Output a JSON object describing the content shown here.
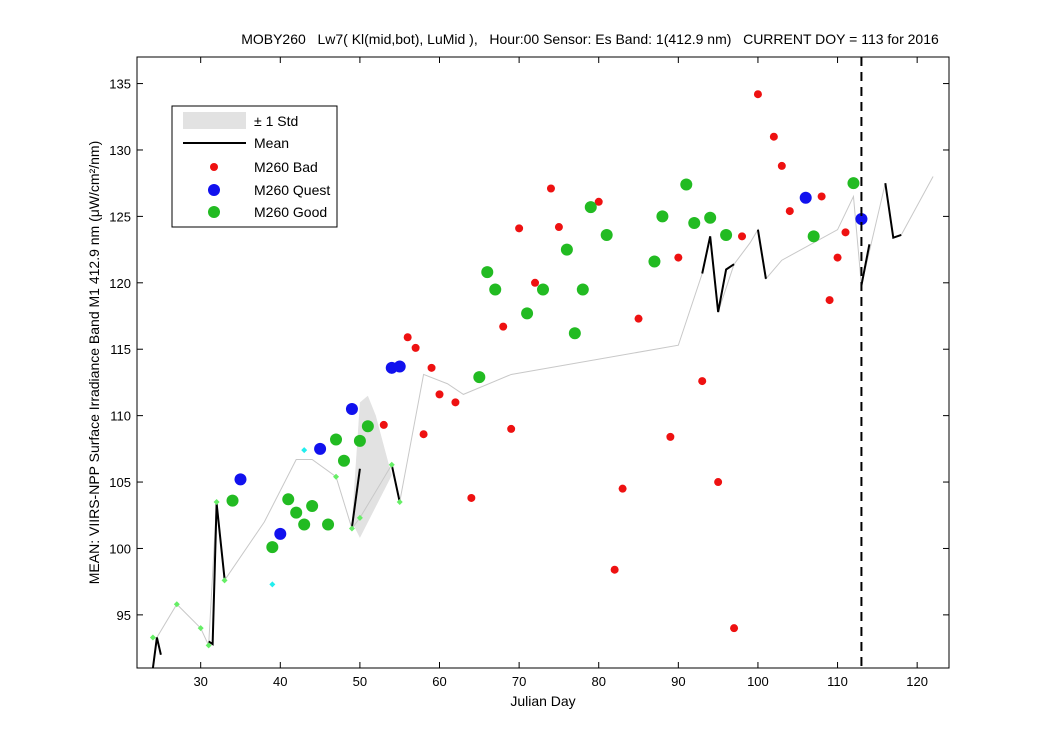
{
  "chart_data": {
    "type": "scatter",
    "title": "MOBY260   Lw7( Kl(mid,bot), LuMid ),   Hour:00 Sensor: Es Band: 1(412.9 nm)   CURRENT DOY = 113 for 2016",
    "xlabel": "Julian Day",
    "ylabel": "MEAN: VIIRS-NPP Surface Irradiance Band M1 412.9 nm (μW/cm²/nm)",
    "xlim": [
      22,
      124
    ],
    "ylim": [
      91,
      137
    ],
    "xticks": [
      30,
      40,
      50,
      60,
      70,
      80,
      90,
      100,
      110,
      120
    ],
    "yticks": [
      95,
      100,
      105,
      110,
      115,
      120,
      125,
      130,
      135
    ],
    "current_doy": 113,
    "grid": false,
    "legend_position": "top-left",
    "legend": {
      "std": "± 1 Std",
      "mean": "Mean",
      "bad": "M260 Bad",
      "quest": "M260 Quest",
      "good": "M260 Good"
    },
    "colors": {
      "bad": "#ee1111",
      "quest": "#1111ee",
      "good": "#22bb22",
      "small_green": "#66ee66",
      "small_cyan": "#22eeee",
      "mean": "#000000",
      "trend": "#c8c8c8",
      "std_band": "#e2e2e2"
    },
    "series": [
      {
        "name": "M260 Bad",
        "points": [
          [
            53,
            109.3
          ],
          [
            56,
            115.9
          ],
          [
            57,
            115.1
          ],
          [
            58,
            108.6
          ],
          [
            59,
            113.6
          ],
          [
            60,
            111.6
          ],
          [
            62,
            111
          ],
          [
            64,
            103.8
          ],
          [
            68,
            116.7
          ],
          [
            69,
            109
          ],
          [
            70,
            124.1
          ],
          [
            72,
            120
          ],
          [
            74,
            127.1
          ],
          [
            75,
            124.2
          ],
          [
            80,
            126.1
          ],
          [
            82,
            98.4
          ],
          [
            83,
            104.5
          ],
          [
            85,
            117.3
          ],
          [
            89,
            108.4
          ],
          [
            90,
            121.9
          ],
          [
            93,
            112.6
          ],
          [
            95,
            105
          ],
          [
            97,
            94
          ],
          [
            98,
            123.5
          ],
          [
            100,
            134.2
          ],
          [
            102,
            131
          ],
          [
            103,
            128.8
          ],
          [
            104,
            125.4
          ],
          [
            108,
            126.5
          ],
          [
            109,
            118.7
          ],
          [
            110,
            121.9
          ],
          [
            111,
            123.8
          ]
        ]
      },
      {
        "name": "M260 Quest",
        "points": [
          [
            35,
            105.2
          ],
          [
            40,
            101.1
          ],
          [
            45,
            107.5
          ],
          [
            49,
            110.5
          ],
          [
            54,
            113.6
          ],
          [
            55,
            113.7
          ],
          [
            106,
            126.4
          ],
          [
            113,
            124.8
          ]
        ]
      },
      {
        "name": "M260 Good",
        "points": [
          [
            34,
            103.6
          ],
          [
            39,
            100.1
          ],
          [
            41,
            103.7
          ],
          [
            42,
            102.7
          ],
          [
            43,
            101.8
          ],
          [
            44,
            103.2
          ],
          [
            46,
            101.8
          ],
          [
            47,
            108.2
          ],
          [
            48,
            106.6
          ],
          [
            50,
            108.1
          ],
          [
            51,
            109.2
          ],
          [
            65,
            112.9
          ],
          [
            66,
            120.8
          ],
          [
            67,
            119.5
          ],
          [
            71,
            117.7
          ],
          [
            73,
            119.5
          ],
          [
            76,
            122.5
          ],
          [
            77,
            116.2
          ],
          [
            78,
            119.5
          ],
          [
            79,
            125.7
          ],
          [
            81,
            123.6
          ],
          [
            87,
            121.6
          ],
          [
            88,
            125
          ],
          [
            91,
            127.4
          ],
          [
            92,
            124.5
          ],
          [
            94,
            124.9
          ],
          [
            96,
            123.6
          ],
          [
            107,
            123.5
          ],
          [
            112,
            127.5
          ]
        ]
      }
    ],
    "small_green_points": [
      [
        24,
        93.3
      ],
      [
        27,
        95.8
      ],
      [
        30,
        94
      ],
      [
        31,
        92.7
      ],
      [
        32,
        103.5
      ],
      [
        33,
        97.6
      ],
      [
        47,
        105.4
      ],
      [
        49,
        101.5
      ],
      [
        50,
        102.3
      ],
      [
        54,
        106.3
      ],
      [
        55,
        103.5
      ]
    ],
    "small_cyan_points": [
      [
        39,
        97.3
      ],
      [
        43,
        107.4
      ]
    ],
    "std_band": [
      [
        49,
        102
      ],
      [
        50,
        111
      ],
      [
        51,
        111.5
      ],
      [
        52,
        110
      ],
      [
        54,
        105.5
      ],
      [
        50,
        100.8
      ]
    ],
    "mean_segments": [
      [
        [
          24,
          90.5
        ],
        [
          24.5,
          93.3
        ],
        [
          25,
          92
        ]
      ],
      [
        [
          31,
          93
        ],
        [
          31.5,
          92.8
        ],
        [
          32,
          103.4
        ],
        [
          33,
          97.7
        ]
      ],
      [
        [
          49,
          101.6
        ],
        [
          50,
          106
        ]
      ],
      [
        [
          54,
          106.3
        ],
        [
          55,
          103.5
        ]
      ],
      [
        [
          93,
          120.7
        ],
        [
          94,
          123.5
        ],
        [
          95,
          117.8
        ],
        [
          96,
          121
        ],
        [
          97,
          121.4
        ]
      ],
      [
        [
          100,
          124
        ],
        [
          101,
          120.3
        ]
      ],
      [
        [
          113,
          119.8
        ],
        [
          114,
          122.9
        ]
      ],
      [
        [
          116,
          127.5
        ],
        [
          117,
          123.4
        ],
        [
          118,
          123.6
        ]
      ]
    ],
    "trend_line": [
      [
        24,
        90.5
      ],
      [
        24.5,
        93.3
      ],
      [
        27,
        95.8
      ],
      [
        30,
        94
      ],
      [
        31,
        92.7
      ],
      [
        32,
        103.5
      ],
      [
        33,
        97.6
      ],
      [
        38,
        102
      ],
      [
        42,
        106.7
      ],
      [
        44,
        106.7
      ],
      [
        47,
        105.4
      ],
      [
        49,
        101.5
      ],
      [
        50,
        102.3
      ],
      [
        54,
        106.3
      ],
      [
        55,
        103.5
      ],
      [
        58,
        113.1
      ],
      [
        61,
        112.4
      ],
      [
        63,
        111.6
      ],
      [
        69,
        113.1
      ],
      [
        90,
        115.3
      ],
      [
        93,
        120.7
      ],
      [
        94,
        123.5
      ],
      [
        95,
        117.8
      ],
      [
        97,
        121.4
      ],
      [
        99,
        123
      ],
      [
        100,
        124
      ],
      [
        101,
        120.3
      ],
      [
        103,
        121.7
      ],
      [
        110,
        124
      ],
      [
        112,
        126.5
      ],
      [
        113,
        119.8
      ],
      [
        116,
        127.5
      ],
      [
        117,
        123.4
      ],
      [
        118,
        123.6
      ],
      [
        122,
        128
      ]
    ]
  }
}
